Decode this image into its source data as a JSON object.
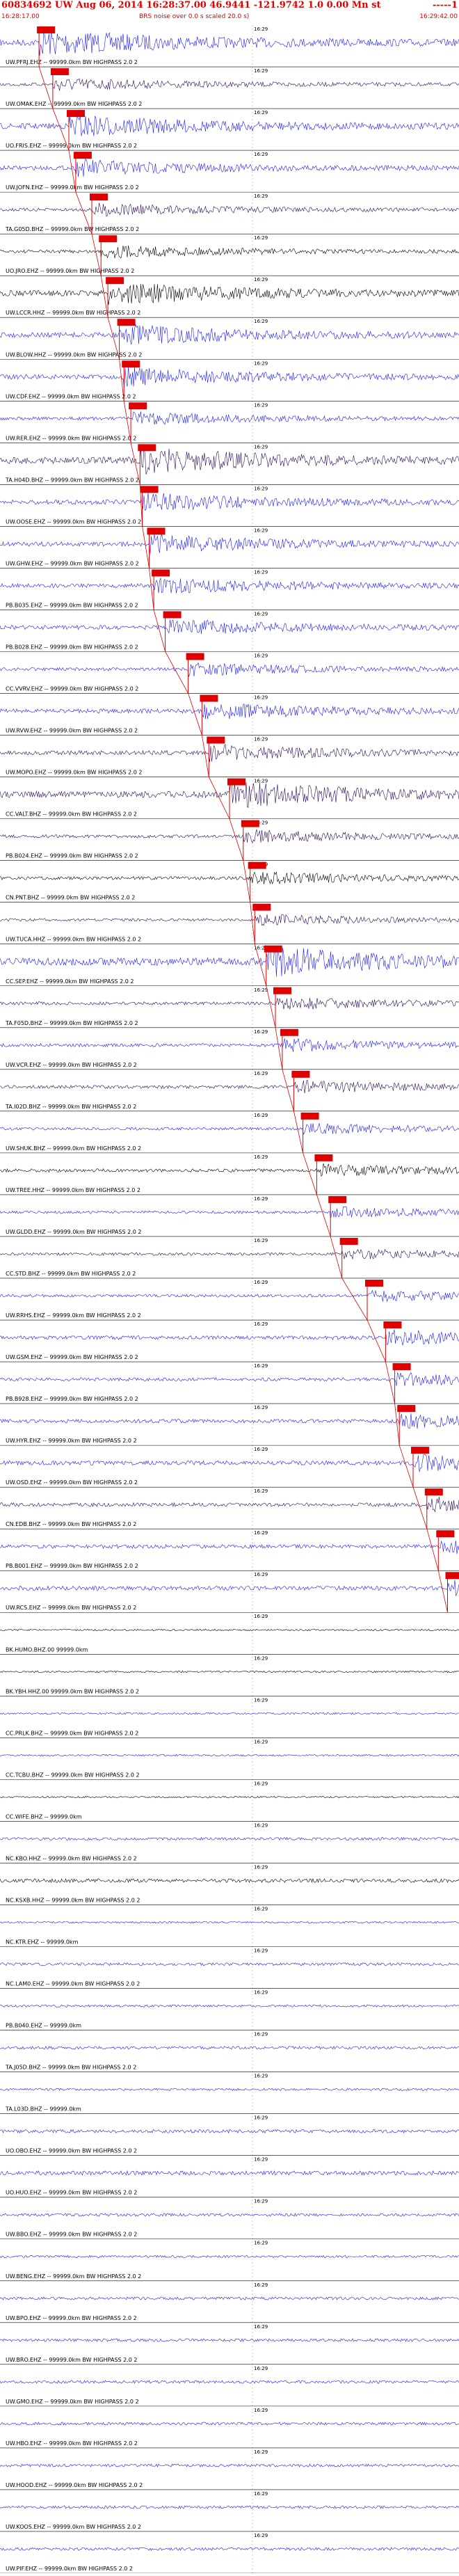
{
  "header": {
    "title": "60834692 UW Aug 06, 2014 16:28:37.00   46.9441  -121.9742   1.0  0.00 Mn st",
    "title_right": "-----1",
    "start_time": "16:28:17.00",
    "subtitle": "BRS noise over 0.0 s scaled 20.0 s)",
    "end_time": "16:29:42.00",
    "tick_label": "16:29"
  },
  "colors": {
    "title": "#e00000",
    "trace_blue": "#1a1aff",
    "trace_black": "#000000",
    "trace_purple": "#2a0a5a",
    "pick_box": "#e00000",
    "pick_line": "#e00000",
    "label_text": "#000000"
  },
  "channels": [
    {
      "label": "UW.PFRJ.EHZ -- 99999.0km BW HIGHPASS 2.0 2",
      "color": "blue",
      "amp": 0.7,
      "pick": 0.085
    },
    {
      "label": "UW.OMAK.EHZ -- 99999.0km BW HIGHPASS 2.0 2",
      "color": "purple",
      "amp": 0.35,
      "pick": 0.115
    },
    {
      "label": "UO.FRIS.EHZ -- 99999.0km BW HIGHPASS 2.0 2",
      "color": "blue",
      "amp": 0.6,
      "pick": 0.15
    },
    {
      "label": "UW.JOFN.EHZ -- 99999.0km BW HIGHPASS 2.0 2",
      "color": "blue",
      "amp": 0.45,
      "pick": 0.165
    },
    {
      "label": "TA.G05D.BHZ -- 99999.0km BW HIGHPASS 2.0 2",
      "color": "purple",
      "amp": 0.35,
      "pick": 0.2
    },
    {
      "label": "UO.JRO.EHZ -- 99999.0km BW HIGHPASS 2.0 2",
      "color": "black",
      "amp": 0.35,
      "pick": 0.22
    },
    {
      "label": "UW.LCCR.HHZ -- 99999.0km BW HIGHPASS 2.0 2",
      "color": "black",
      "amp": 0.6,
      "pick": 0.235
    },
    {
      "label": "UW.BLOW.HHZ -- 99999.0km BW HIGHPASS 2.0 2",
      "color": "blue",
      "amp": 0.55,
      "pick": 0.26
    },
    {
      "label": "UW.CDF.EHZ -- 99999.0km BW HIGHPASS 2.0 2",
      "color": "blue",
      "amp": 0.5,
      "pick": 0.27
    },
    {
      "label": "UW.RER.EHZ -- 99999.0km BW HIGHPASS 2.0 2",
      "color": "blue",
      "amp": 0.35,
      "pick": 0.285
    },
    {
      "label": "TA.H04D.BHZ -- 99999.0km BW HIGHPASS 2.0 2",
      "color": "purple",
      "amp": 0.7,
      "pick": 0.305
    },
    {
      "label": "UW.OOSE.EHZ -- 99999.0km BW HIGHPASS 2.0 2",
      "color": "blue",
      "amp": 0.5,
      "pick": 0.31
    },
    {
      "label": "UW.GHW.EHZ -- 99999.0km BW HIGHPASS 2.0 2",
      "color": "blue",
      "amp": 0.5,
      "pick": 0.325
    },
    {
      "label": "PB.B035.EHZ -- 99999.0km BW HIGHPASS 2.0 2",
      "color": "blue",
      "amp": 0.45,
      "pick": 0.335
    },
    {
      "label": "PB.B028.EHZ -- 99999.0km BW HIGHPASS 2.0 2",
      "color": "blue",
      "amp": 0.45,
      "pick": 0.36
    },
    {
      "label": "CC.VVRV.EHZ -- 99999.0km BW HIGHPASS 2.0 2",
      "color": "blue",
      "amp": 0.35,
      "pick": 0.41
    },
    {
      "label": "UW.RVW.EHZ -- 99999.0km BW HIGHPASS 2.0 2",
      "color": "blue",
      "amp": 0.45,
      "pick": 0.44
    },
    {
      "label": "UW.MOPO.EHZ -- 99999.0km BW HIGHPASS 2.0 2",
      "color": "purple",
      "amp": 0.45,
      "pick": 0.455
    },
    {
      "label": "CC.VALT.BHZ -- 99999.0km BW HIGHPASS 2.0 2",
      "color": "purple",
      "amp": 0.7,
      "pick": 0.5
    },
    {
      "label": "PB.B024.EHZ -- 99999.0km BW HIGHPASS 2.0 2",
      "color": "purple",
      "amp": 0.35,
      "pick": 0.53
    },
    {
      "label": "CN.PNT.BHZ -- 99999.0km BW HIGHPASS 2.0 2",
      "color": "black",
      "amp": 0.35,
      "pick": 0.545
    },
    {
      "label": "UW.TUCA.HHZ -- 99999.0km BW HIGHPASS 2.0 2",
      "color": "purple",
      "amp": 0.3,
      "pick": 0.555
    },
    {
      "label": "CC.SEP.EHZ -- 99999.0km BW HIGHPASS 2.0 2",
      "color": "blue",
      "amp": 0.8,
      "pick": 0.58
    },
    {
      "label": "TA.F05D.BHZ -- 99999.0km BW HIGHPASS 2.0 2",
      "color": "purple",
      "amp": 0.35,
      "pick": 0.6
    },
    {
      "label": "UW.VCR.EHZ -- 99999.0km BW HIGHPASS 2.0 2",
      "color": "blue",
      "amp": 0.35,
      "pick": 0.615
    },
    {
      "label": "TA.I02D.BHZ -- 99999.0km BW HIGHPASS 2.0 2",
      "color": "purple",
      "amp": 0.35,
      "pick": 0.64
    },
    {
      "label": "UW.SHUK.BHZ -- 99999.0km BW HIGHPASS 2.0 2",
      "color": "blue",
      "amp": 0.3,
      "pick": 0.66
    },
    {
      "label": "UW.TREE.HHZ -- 99999.0km BW HIGHPASS 2.0 2",
      "color": "black",
      "amp": 0.35,
      "pick": 0.69
    },
    {
      "label": "UW.GLDD.EHZ -- 99999.0km BW HIGHPASS 2.0 2",
      "color": "blue",
      "amp": 0.3,
      "pick": 0.72
    },
    {
      "label": "CC.STD.BHZ -- 99999.0km BW HIGHPASS 2.0 2",
      "color": "purple",
      "amp": 0.3,
      "pick": 0.745
    },
    {
      "label": "UW.RRHS.EHZ -- 99999.0km BW HIGHPASS 2.0 2",
      "color": "blue",
      "amp": 0.3,
      "pick": 0.8
    },
    {
      "label": "UW.GSM.EHZ -- 99999.0km BW HIGHPASS 2.0 2",
      "color": "blue",
      "amp": 0.4,
      "pick": 0.84
    },
    {
      "label": "PB.B928.EHZ -- 99999.0km BW HIGHPASS 2.0 2",
      "color": "blue",
      "amp": 0.35,
      "pick": 0.86
    },
    {
      "label": "UW.HYR.EHZ -- 99999.0km BW HIGHPASS 2.0 2",
      "color": "blue",
      "amp": 0.4,
      "pick": 0.87
    },
    {
      "label": "UW.OSD.EHZ -- 99999.0km BW HIGHPASS 2.0 2",
      "color": "blue",
      "amp": 0.45,
      "pick": 0.9
    },
    {
      "label": "CN.EDB.BHZ -- 99999.0km BW HIGHPASS 2.0 2",
      "color": "purple",
      "amp": 0.4,
      "pick": 0.93
    },
    {
      "label": "PB.B001.EHZ -- 99999.0km BW HIGHPASS 2.0 2",
      "color": "blue",
      "amp": 0.4,
      "pick": 0.955
    },
    {
      "label": "UW.RCS.EHZ -- 99999.0km BW HIGHPASS 2.0 2",
      "color": "blue",
      "amp": 0.45,
      "pick": 0.975
    },
    {
      "label": "BK.HUMO.BHZ.00 99999.0km",
      "color": "black",
      "amp": 0.2,
      "pick": null
    },
    {
      "label": "BK.YBH.HHZ.00 99999.0km BW HIGHPASS 2.0 2",
      "color": "black",
      "amp": 0.2,
      "pick": null
    },
    {
      "label": "CC.PRLK.BHZ -- 99999.0km BW HIGHPASS 2.0 2",
      "color": "blue",
      "amp": 0.2,
      "pick": null
    },
    {
      "label": "CC.TCBU.BHZ -- 99999.0km BW HIGHPASS 2.0 2",
      "color": "blue",
      "amp": 0.2,
      "pick": null
    },
    {
      "label": "CC.WIFE.BHZ -- 99999.0km",
      "color": "black",
      "amp": 0.2,
      "pick": null
    },
    {
      "label": "NC.KBO.HHZ -- 99999.0km BW HIGHPASS 2.0 2",
      "color": "blue",
      "amp": 0.3,
      "pick": null
    },
    {
      "label": "NC.KSXB.HHZ -- 99999.0km BW HIGHPASS 2.0 2",
      "color": "black",
      "amp": 0.4,
      "pick": null
    },
    {
      "label": "NC.KTR.EHZ -- 99999.0km",
      "color": "blue",
      "amp": 0.2,
      "pick": null
    },
    {
      "label": "NC.LAM0.EHZ -- 99999.0km BW HIGHPASS 2.0 2",
      "color": "blue",
      "amp": 0.3,
      "pick": null
    },
    {
      "label": "PB.B040.EHZ -- 99999.0km",
      "color": "blue",
      "amp": 0.25,
      "pick": null
    },
    {
      "label": "TA.J05D.BHZ -- 99999.0km BW HIGHPASS 2.0 2",
      "color": "blue",
      "amp": 0.3,
      "pick": null
    },
    {
      "label": "TA.L03D.BHZ -- 99999.0km",
      "color": "blue",
      "amp": 0.25,
      "pick": null
    },
    {
      "label": "UO.OBO.EHZ -- 99999.0km BW HIGHPASS 2.0 2",
      "color": "blue",
      "amp": 0.35,
      "pick": null
    },
    {
      "label": "UO.HUO.EHZ -- 99999.0km BW HIGHPASS 2.0 2",
      "color": "blue",
      "amp": 0.45,
      "pick": null
    },
    {
      "label": "UW.BBO.EHZ -- 99999.0km BW HIGHPASS 2.0 2",
      "color": "blue",
      "amp": 0.3,
      "pick": null
    },
    {
      "label": "UW.BENG.EHZ -- 99999.0km BW HIGHPASS 2.0 2",
      "color": "blue",
      "amp": 0.25,
      "pick": null
    },
    {
      "label": "UW.BPO.EHZ -- 99999.0km BW HIGHPASS 2.0 2",
      "color": "blue",
      "amp": 0.3,
      "pick": null
    },
    {
      "label": "UW.BRO.EHZ -- 99999.0km BW HIGHPASS 2.0 2",
      "color": "blue",
      "amp": 0.3,
      "pick": null
    },
    {
      "label": "UW.GMO.EHZ -- 99999.0km BW HIGHPASS 2.0 2",
      "color": "blue",
      "amp": 0.3,
      "pick": null
    },
    {
      "label": "UW.HBO.EHZ -- 99999.0km BW HIGHPASS 2.0 2",
      "color": "blue",
      "amp": 0.3,
      "pick": null
    },
    {
      "label": "UW.HOOD.EHZ -- 99999.0km BW HIGHPASS 2.0 2",
      "color": "blue",
      "amp": 0.3,
      "pick": null
    },
    {
      "label": "UW.KOOS.EHZ -- 99999.0km BW HIGHPASS 2.0 2",
      "color": "blue",
      "amp": 0.3,
      "pick": null
    },
    {
      "label": "UW.PIF.EHZ -- 99999.0km BW HIGHPASS 2.0 2",
      "color": "blue",
      "amp": 0.3,
      "pick": null
    }
  ]
}
